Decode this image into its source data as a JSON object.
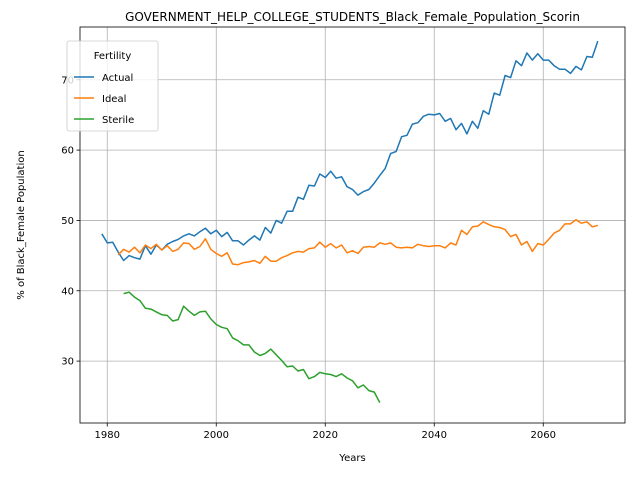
{
  "chart_data": {
    "type": "line",
    "title": "GOVERNMENT_HELP_COLLEGE_STUDENTS_Black_Female_Population_Scorin",
    "xlabel": "Years",
    "ylabel": "% of Black_Female Population",
    "xlim": [
      1975,
      2075
    ],
    "ylim": [
      21.2,
      77.5
    ],
    "xticks": [
      1980,
      2000,
      2020,
      2040,
      2060
    ],
    "yticks": [
      30,
      40,
      50,
      60,
      70
    ],
    "grid": true,
    "legend": {
      "title": "Fertility",
      "placement": "upper-left"
    },
    "series": [
      {
        "name": "Actual",
        "color": "#1f77b4",
        "x": [
          1979,
          1980,
          1981,
          1982,
          1983,
          1984,
          1985,
          1986,
          1987,
          1988,
          1989,
          1990,
          1991,
          1992,
          1993,
          1994,
          1995,
          1996,
          1997,
          1998,
          1999,
          2000,
          2001,
          2002,
          2003,
          2004,
          2005,
          2006,
          2007,
          2008,
          2009,
          2010,
          2011,
          2012,
          2013,
          2014,
          2015,
          2016,
          2017,
          2018,
          2019,
          2020,
          2021,
          2022,
          2023,
          2024,
          2025,
          2026,
          2027,
          2028,
          2029,
          2030,
          2031,
          2032,
          2033,
          2034,
          2035,
          2036,
          2037,
          2038,
          2039,
          2040,
          2041,
          2042,
          2043,
          2044,
          2045,
          2046,
          2047,
          2048,
          2049,
          2050,
          2051,
          2052,
          2053,
          2054,
          2055,
          2056,
          2057,
          2058,
          2059,
          2060,
          2061,
          2062,
          2063,
          2064,
          2065,
          2066,
          2067,
          2068,
          2069,
          2070
        ],
        "values": [
          48.1,
          46.8,
          46.9,
          45.5,
          44.3,
          45.0,
          44.7,
          44.5,
          46.4,
          45.2,
          46.5,
          45.8,
          46.6,
          47.0,
          47.3,
          47.8,
          48.1,
          47.8,
          48.4,
          48.9,
          48.1,
          48.6,
          47.7,
          48.3,
          47.1,
          47.1,
          46.5,
          47.2,
          47.8,
          47.2,
          49.0,
          48.2,
          50.0,
          49.6,
          51.3,
          51.3,
          53.3,
          53.0,
          55.0,
          54.9,
          56.6,
          56.1,
          57.0,
          56.0,
          56.2,
          54.8,
          54.4,
          53.6,
          54.1,
          54.4,
          55.3,
          56.4,
          57.4,
          59.5,
          59.8,
          61.9,
          62.1,
          63.7,
          63.9,
          64.8,
          65.1,
          65.0,
          65.2,
          64.1,
          64.5,
          62.9,
          63.8,
          62.3,
          64.1,
          63.1,
          65.6,
          65.1,
          68.1,
          67.8,
          70.6,
          70.3,
          72.7,
          72.0,
          73.8,
          72.8,
          73.7,
          72.8,
          72.8,
          72.0,
          71.5,
          71.5,
          70.9,
          71.9,
          71.4,
          73.3,
          73.2,
          75.5
        ]
      },
      {
        "name": "Ideal",
        "color": "#ff7f0e",
        "x": [
          1982,
          1983,
          1984,
          1985,
          1986,
          1987,
          1988,
          1989,
          1990,
          1991,
          1992,
          1993,
          1994,
          1995,
          1996,
          1997,
          1998,
          1999,
          2000,
          2001,
          2002,
          2003,
          2004,
          2005,
          2006,
          2007,
          2008,
          2009,
          2010,
          2011,
          2012,
          2013,
          2014,
          2015,
          2016,
          2017,
          2018,
          2019,
          2020,
          2021,
          2022,
          2023,
          2024,
          2025,
          2026,
          2027,
          2028,
          2029,
          2030,
          2031,
          2032,
          2033,
          2034,
          2035,
          2036,
          2037,
          2038,
          2039,
          2040,
          2041,
          2042,
          2043,
          2044,
          2045,
          2046,
          2047,
          2048,
          2049,
          2050,
          2051,
          2052,
          2053,
          2054,
          2055,
          2056,
          2057,
          2058,
          2059,
          2060,
          2061,
          2062,
          2063,
          2064,
          2065,
          2066,
          2067,
          2068,
          2069,
          2070
        ],
        "values": [
          45.1,
          45.9,
          45.5,
          46.2,
          45.4,
          46.5,
          46.0,
          46.6,
          45.8,
          46.4,
          45.6,
          45.9,
          46.8,
          46.7,
          45.9,
          46.3,
          47.4,
          45.9,
          45.3,
          44.9,
          45.4,
          43.8,
          43.7,
          44.0,
          44.1,
          44.3,
          43.9,
          44.9,
          44.2,
          44.2,
          44.7,
          45.0,
          45.4,
          45.6,
          45.5,
          46.0,
          46.1,
          46.9,
          46.2,
          46.7,
          46.1,
          46.5,
          45.4,
          45.7,
          45.3,
          46.2,
          46.3,
          46.2,
          46.8,
          46.6,
          46.8,
          46.2,
          46.1,
          46.2,
          46.1,
          46.6,
          46.4,
          46.3,
          46.4,
          46.4,
          46.1,
          46.8,
          46.5,
          48.6,
          48.0,
          49.1,
          49.2,
          49.8,
          49.4,
          49.1,
          49.0,
          48.7,
          47.7,
          48.0,
          46.5,
          47.0,
          45.6,
          46.7,
          46.5,
          47.3,
          48.2,
          48.6,
          49.5,
          49.5,
          50.1,
          49.6,
          49.8,
          49.1,
          49.3
        ]
      },
      {
        "name": "Sterile",
        "color": "#2ca02c",
        "x": [
          1983,
          1984,
          1985,
          1986,
          1987,
          1988,
          1989,
          1990,
          1991,
          1992,
          1993,
          1994,
          1995,
          1996,
          1997,
          1998,
          1999,
          2000,
          2001,
          2002,
          2003,
          2004,
          2005,
          2006,
          2007,
          2008,
          2009,
          2010,
          2011,
          2012,
          2013,
          2014,
          2015,
          2016,
          2017,
          2018,
          2019,
          2020,
          2021,
          2022,
          2023,
          2024,
          2025,
          2026,
          2027,
          2028,
          2029,
          2030
        ],
        "values": [
          39.6,
          39.8,
          39.1,
          38.6,
          37.5,
          37.4,
          37.0,
          36.6,
          36.5,
          35.7,
          35.9,
          37.8,
          37.1,
          36.5,
          37.0,
          37.1,
          36.0,
          35.2,
          34.8,
          34.6,
          33.3,
          32.9,
          32.3,
          32.3,
          31.3,
          30.8,
          31.1,
          31.7,
          30.9,
          30.1,
          29.2,
          29.3,
          28.6,
          28.8,
          27.5,
          27.8,
          28.4,
          28.2,
          28.1,
          27.8,
          28.2,
          27.6,
          27.2,
          26.2,
          26.6,
          25.8,
          25.6,
          24.1
        ]
      }
    ]
  }
}
